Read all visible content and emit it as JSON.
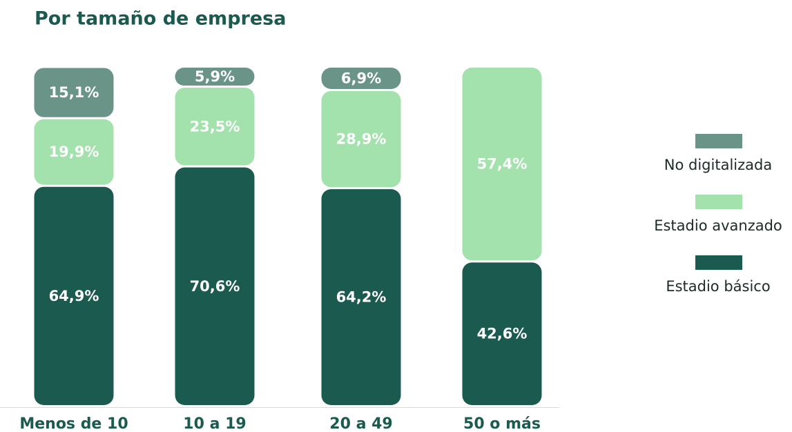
{
  "chart_data": {
    "type": "stacked_bar",
    "title": "Por tamaño de empresa",
    "categories": [
      "Menos de 10",
      "10 a 19",
      "20 a 49",
      "50 o más"
    ],
    "series": [
      {
        "name": "Estadio básico",
        "color": "#1b5a4f",
        "values": [
          64.9,
          70.6,
          64.2,
          42.6
        ],
        "value_labels": [
          "64,9%",
          "70,6%",
          "64,2%",
          "42,6%"
        ]
      },
      {
        "name": "Estadio avanzado",
        "color": "#a3e2ad",
        "values": [
          19.9,
          23.5,
          28.9,
          57.4
        ],
        "value_labels": [
          "19,9%",
          "23,5%",
          "28,9%",
          "57,4%"
        ]
      },
      {
        "name": "No digitalizada",
        "color": "#6a9488",
        "values": [
          15.1,
          5.9,
          6.9,
          null
        ],
        "value_labels": [
          "15,1%",
          "5,9%",
          "6,9%",
          null
        ]
      }
    ],
    "ylim": [
      0,
      100
    ],
    "legend": "right"
  }
}
